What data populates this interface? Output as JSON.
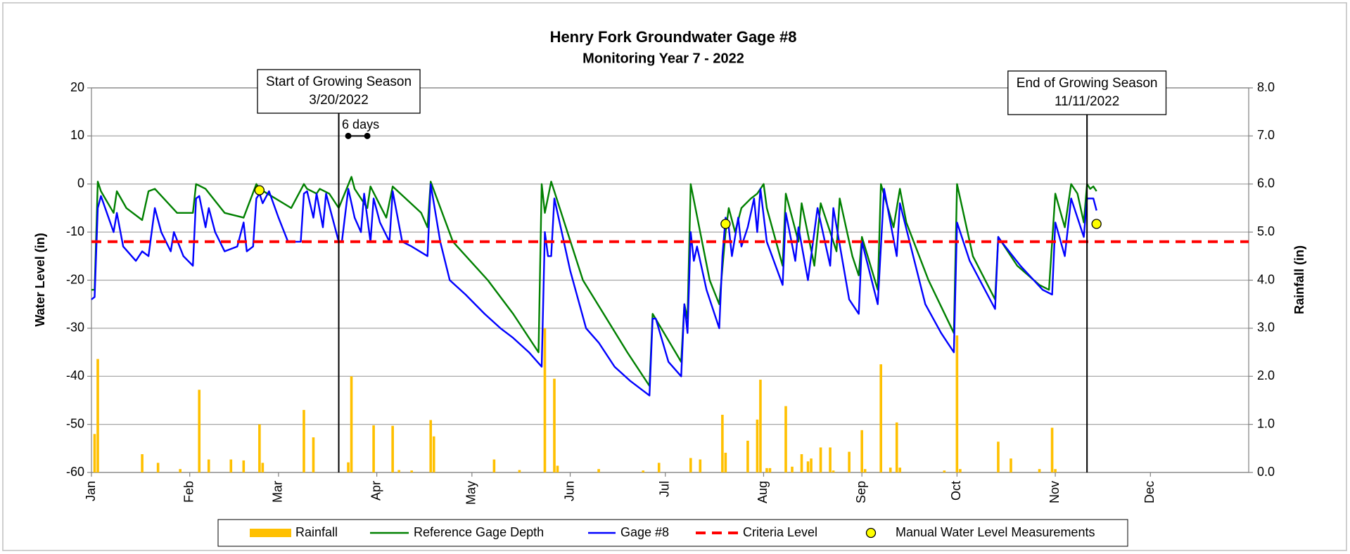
{
  "chart_data": {
    "type": "line",
    "title": "Henry Fork Groundwater Gage #8",
    "subtitle": "Monitoring Year 7 - 2022",
    "y_label": "Water Level (in)",
    "y2_label": "Rainfall (in)",
    "xlim": [
      "2022-01-01",
      "2023-01-01"
    ],
    "xticks": [
      {
        "value": "2022-01-01",
        "label": "Jan"
      },
      {
        "value": "2022-02-01",
        "label": "Feb"
      },
      {
        "value": "2022-03-01",
        "label": "Mar"
      },
      {
        "value": "2022-04-01",
        "label": "Apr"
      },
      {
        "value": "2022-05-01",
        "label": "May"
      },
      {
        "value": "2022-06-01",
        "label": "Jun"
      },
      {
        "value": "2022-07-01",
        "label": "Jul"
      },
      {
        "value": "2022-08-01",
        "label": "Aug"
      },
      {
        "value": "2022-09-01",
        "label": "Sep"
      },
      {
        "value": "2022-10-01",
        "label": "Oct"
      },
      {
        "value": "2022-11-01",
        "label": "Nov"
      },
      {
        "value": "2022-12-01",
        "label": "Dec"
      }
    ],
    "ylim": [
      -60,
      20
    ],
    "yticks": [
      -60,
      -50,
      -40,
      -30,
      -20,
      -10,
      0,
      10,
      20
    ],
    "y2lim": [
      0,
      8
    ],
    "y2ticks": [
      {
        "value": 0,
        "label": "0.0"
      },
      {
        "value": 1,
        "label": "1.0"
      },
      {
        "value": 2,
        "label": "2.0"
      },
      {
        "value": 3,
        "label": "3.0"
      },
      {
        "value": 4,
        "label": "4.0"
      },
      {
        "value": 5,
        "label": "5.0"
      },
      {
        "value": 6,
        "label": "6.0"
      },
      {
        "value": 7,
        "label": "7.0"
      },
      {
        "value": 8,
        "label": "8.0"
      }
    ],
    "grid": true,
    "legend": "bottom",
    "series": [
      {
        "name": "Rainfall",
        "type": "bar",
        "axis": "y2",
        "color": "#ffc000",
        "x": [
          "2022-01-02",
          "2022-01-03",
          "2022-01-17",
          "2022-01-22",
          "2022-01-29",
          "2022-02-04",
          "2022-02-07",
          "2022-02-14",
          "2022-02-18",
          "2022-02-23",
          "2022-02-24",
          "2022-03-09",
          "2022-03-12",
          "2022-03-23",
          "2022-03-24",
          "2022-03-31",
          "2022-04-06",
          "2022-04-08",
          "2022-04-12",
          "2022-04-18",
          "2022-04-19",
          "2022-05-08",
          "2022-05-16",
          "2022-05-24",
          "2022-05-27",
          "2022-05-28",
          "2022-06-10",
          "2022-06-24",
          "2022-06-29",
          "2022-07-09",
          "2022-07-12",
          "2022-07-19",
          "2022-07-20",
          "2022-07-27",
          "2022-07-30",
          "2022-07-31",
          "2022-08-02",
          "2022-08-03",
          "2022-08-08",
          "2022-08-10",
          "2022-08-13",
          "2022-08-15",
          "2022-08-16",
          "2022-08-19",
          "2022-08-22",
          "2022-08-23",
          "2022-08-28",
          "2022-09-01",
          "2022-09-02",
          "2022-09-07",
          "2022-09-10",
          "2022-09-12",
          "2022-09-13",
          "2022-09-27",
          "2022-10-01",
          "2022-10-02",
          "2022-10-14",
          "2022-10-18",
          "2022-10-27",
          "2022-10-31",
          "2022-11-01"
        ],
        "values": [
          0.8,
          2.36,
          0.38,
          0.2,
          0.07,
          1.72,
          0.27,
          0.27,
          0.25,
          1.0,
          0.2,
          1.3,
          0.73,
          0.21,
          2.0,
          0.98,
          0.97,
          0.05,
          0.04,
          1.09,
          0.75,
          0.27,
          0.05,
          3.0,
          1.95,
          0.14,
          0.07,
          0.04,
          0.2,
          0.3,
          0.27,
          1.2,
          0.41,
          0.66,
          1.1,
          1.93,
          0.09,
          0.09,
          1.38,
          0.12,
          0.38,
          0.23,
          0.29,
          0.52,
          0.52,
          0.04,
          0.43,
          0.88,
          0.07,
          2.25,
          0.1,
          1.04,
          0.1,
          0.04,
          2.85,
          0.07,
          0.64,
          0.29,
          0.07,
          0.93,
          0.07
        ]
      },
      {
        "name": "Reference Gage Depth",
        "type": "line",
        "color": "#008000",
        "x": [
          "2022-01-01",
          "2022-01-02",
          "2022-01-03",
          "2022-01-04",
          "2022-01-08",
          "2022-01-09",
          "2022-01-12",
          "2022-01-17",
          "2022-01-19",
          "2022-01-21",
          "2022-01-28",
          "2022-02-02",
          "2022-02-03",
          "2022-02-06",
          "2022-02-12",
          "2022-02-18",
          "2022-02-22",
          "2022-02-23",
          "2022-03-05",
          "2022-03-09",
          "2022-03-10",
          "2022-03-13",
          "2022-03-14",
          "2022-03-17",
          "2022-03-20",
          "2022-03-24",
          "2022-03-25",
          "2022-03-29",
          "2022-03-30",
          "2022-04-04",
          "2022-04-06",
          "2022-04-15",
          "2022-04-17",
          "2022-04-18",
          "2022-04-25",
          "2022-05-06",
          "2022-05-14",
          "2022-05-22",
          "2022-05-23",
          "2022-05-24",
          "2022-05-26",
          "2022-06-05",
          "2022-06-19",
          "2022-06-26",
          "2022-06-27",
          "2022-07-06",
          "2022-07-07",
          "2022-07-08",
          "2022-07-09",
          "2022-07-15",
          "2022-07-18",
          "2022-07-20",
          "2022-07-21",
          "2022-07-23",
          "2022-07-25",
          "2022-07-28",
          "2022-07-30",
          "2022-08-01",
          "2022-08-02",
          "2022-08-07",
          "2022-08-08",
          "2022-08-12",
          "2022-08-13",
          "2022-08-17",
          "2022-08-19",
          "2022-08-24",
          "2022-08-25",
          "2022-08-29",
          "2022-08-31",
          "2022-09-01",
          "2022-09-06",
          "2022-09-07",
          "2022-09-11",
          "2022-09-13",
          "2022-09-15",
          "2022-09-22",
          "2022-09-30",
          "2022-10-01",
          "2022-10-06",
          "2022-10-13",
          "2022-10-14",
          "2022-10-20",
          "2022-10-27",
          "2022-10-30",
          "2022-11-01",
          "2022-11-04",
          "2022-11-06",
          "2022-11-08",
          "2022-11-10",
          "2022-11-11",
          "2022-11-12",
          "2022-11-13",
          "2022-11-14"
        ],
        "values": [
          -22,
          -22,
          0.5,
          -1.5,
          -6,
          -1.5,
          -5,
          -7.5,
          -1.5,
          -1,
          -6,
          -6,
          0,
          -1,
          -6,
          -7,
          0,
          -1,
          -5,
          0,
          -1,
          -2,
          -1,
          -2,
          -5,
          1.5,
          -1,
          -5,
          -0.5,
          -7,
          -0.5,
          -6,
          -9,
          0.5,
          -12,
          -20,
          -27,
          -35,
          0,
          -6,
          0.5,
          -20,
          -35,
          -42,
          -27,
          -37,
          -25,
          -28,
          0,
          -20,
          -25,
          -10,
          -5,
          -10,
          -5,
          -3,
          -2,
          0,
          -5,
          -17,
          -2,
          -12,
          -4,
          -17,
          -4,
          -14,
          -3,
          -15,
          -19,
          -11,
          -22,
          0,
          -9,
          -1,
          -8,
          -20,
          -31,
          0,
          -15,
          -24,
          -11,
          -17,
          -21,
          -22,
          -2,
          -9,
          0,
          -2,
          -8,
          0,
          -1,
          -0.5,
          -1.5
        ]
      },
      {
        "name": "Gage #8",
        "type": "line",
        "color": "#0000ff",
        "x": [
          "2022-01-01",
          "2022-01-02",
          "2022-01-03",
          "2022-01-04",
          "2022-01-08",
          "2022-01-09",
          "2022-01-11",
          "2022-01-15",
          "2022-01-17",
          "2022-01-19",
          "2022-01-21",
          "2022-01-23",
          "2022-01-26",
          "2022-01-27",
          "2022-01-30",
          "2022-02-02",
          "2022-02-03",
          "2022-02-04",
          "2022-02-06",
          "2022-02-07",
          "2022-02-09",
          "2022-02-12",
          "2022-02-16",
          "2022-02-18",
          "2022-02-19",
          "2022-02-21",
          "2022-02-22",
          "2022-02-23",
          "2022-02-24",
          "2022-02-26",
          "2022-03-01",
          "2022-03-04",
          "2022-03-08",
          "2022-03-09",
          "2022-03-10",
          "2022-03-12",
          "2022-03-13",
          "2022-03-15",
          "2022-03-16",
          "2022-03-20",
          "2022-03-21",
          "2022-03-23",
          "2022-03-25",
          "2022-03-27",
          "2022-03-28",
          "2022-03-30",
          "2022-03-31",
          "2022-04-02",
          "2022-04-05",
          "2022-04-06",
          "2022-04-09",
          "2022-04-12",
          "2022-04-17",
          "2022-04-18",
          "2022-04-21",
          "2022-04-24",
          "2022-04-29",
          "2022-05-05",
          "2022-05-10",
          "2022-05-14",
          "2022-05-19",
          "2022-05-23",
          "2022-05-24",
          "2022-05-25",
          "2022-05-26",
          "2022-05-27",
          "2022-05-28",
          "2022-06-01",
          "2022-06-06",
          "2022-06-10",
          "2022-06-15",
          "2022-06-20",
          "2022-06-26",
          "2022-06-27",
          "2022-06-28",
          "2022-07-02",
          "2022-07-06",
          "2022-07-07",
          "2022-07-08",
          "2022-07-09",
          "2022-07-10",
          "2022-07-11",
          "2022-07-14",
          "2022-07-18",
          "2022-07-19",
          "2022-07-20",
          "2022-07-21",
          "2022-07-22",
          "2022-07-24",
          "2022-07-25",
          "2022-07-27",
          "2022-07-29",
          "2022-07-30",
          "2022-07-31",
          "2022-08-02",
          "2022-08-07",
          "2022-08-08",
          "2022-08-11",
          "2022-08-12",
          "2022-08-15",
          "2022-08-18",
          "2022-08-22",
          "2022-08-23",
          "2022-08-28",
          "2022-08-31",
          "2022-09-01",
          "2022-09-06",
          "2022-09-08",
          "2022-09-12",
          "2022-09-13",
          "2022-09-21",
          "2022-09-26",
          "2022-09-30",
          "2022-10-01",
          "2022-10-05",
          "2022-10-09",
          "2022-10-13",
          "2022-10-14",
          "2022-10-15",
          "2022-10-21",
          "2022-10-28",
          "2022-10-31",
          "2022-11-01",
          "2022-11-04",
          "2022-11-06",
          "2022-11-10",
          "2022-11-11",
          "2022-11-13",
          "2022-11-14"
        ],
        "values": [
          -24,
          -23.5,
          -5,
          -2.5,
          -10,
          -6,
          -13,
          -16,
          -14,
          -15,
          -5,
          -10,
          -14,
          -10,
          -15,
          -17,
          -3,
          -2.5,
          -9,
          -5,
          -10,
          -14,
          -13,
          -8,
          -14,
          -13,
          -3,
          -2,
          -4,
          -1.5,
          -7,
          -12,
          -12,
          -2,
          -1.5,
          -7,
          -2,
          -9,
          -2,
          -12,
          -12,
          -1,
          -7,
          -10,
          -2,
          -12,
          -3,
          -8,
          -12,
          -1.5,
          -12,
          -13,
          -15,
          0,
          -12,
          -20,
          -23,
          -27,
          -30,
          -32,
          -35,
          -38,
          -10,
          -15,
          -15,
          -3,
          -6,
          -18,
          -30,
          -33,
          -38,
          -41,
          -44,
          -28,
          -28,
          -37,
          -40,
          -25,
          -31,
          -10,
          -16,
          -13,
          -22,
          -30,
          -15,
          -7,
          -9,
          -15,
          -7,
          -13,
          -9,
          -3,
          -10,
          -1,
          -12,
          -21,
          -6,
          -16,
          -9,
          -20,
          -5,
          -17,
          -5,
          -24,
          -27,
          -12,
          -25,
          -1,
          -15,
          -4,
          -25,
          -31,
          -35,
          -8,
          -16,
          -21,
          -26,
          -11,
          -12,
          -17,
          -22,
          -23,
          -8,
          -15,
          -3,
          -11,
          -3,
          -3,
          -5.5
        ]
      },
      {
        "name": "Criteria Level",
        "type": "line",
        "dashed": true,
        "color": "#ff0000",
        "x": [
          "2022-01-01",
          "2023-01-01"
        ],
        "values": [
          -12,
          -12
        ]
      },
      {
        "name": "Manual Water Level Measurements",
        "type": "scatter",
        "color": "#ffff00",
        "x": [
          "2022-02-23",
          "2022-07-20",
          "2022-11-14"
        ],
        "values": [
          -1.3,
          -8.3,
          -8.3
        ]
      }
    ],
    "annotations": [
      {
        "lines": [
          "Start of Growing Season",
          "3/20/2022"
        ],
        "x": "2022-03-20"
      },
      {
        "lines": [
          "End of Growing Season",
          "11/11/2022"
        ],
        "x": "2022-11-11"
      },
      {
        "text": "6 days",
        "x": [
          "2022-03-23",
          "2022-03-29"
        ],
        "y": 10
      }
    ]
  }
}
